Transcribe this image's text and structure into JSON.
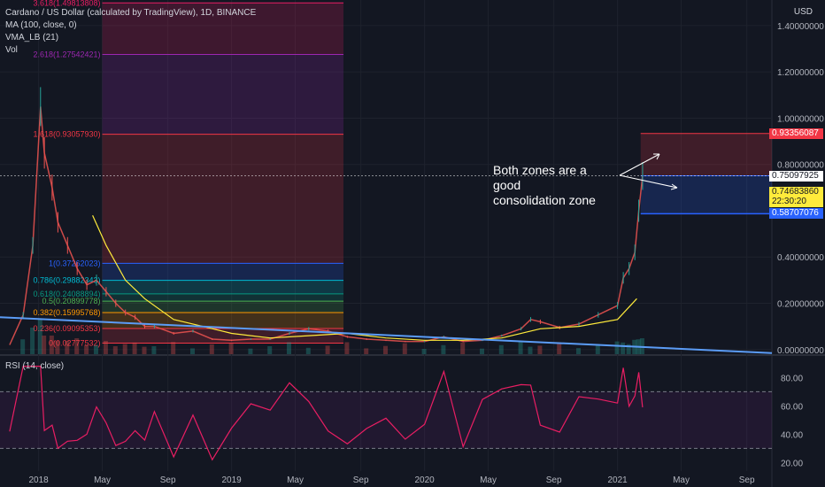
{
  "legend": {
    "title": "Cardano / US Dollar (calculated by TradingView), 1D, BINANCE",
    "ma": "MA (100, close, 0)",
    "vma": "VMA_LB (21)",
    "vol": "Vol"
  },
  "annotation": {
    "line1": "Both zones are a good",
    "line2": "consolidation zone"
  },
  "currency": "USD",
  "price_tags": [
    {
      "label": "0.93356087",
      "color": "#f23645",
      "text_color": "#ffffff"
    },
    {
      "label": "0.75097925",
      "color": "#ffffff",
      "text_color": "#131722"
    },
    {
      "label": "0.74683860",
      "color": "#ffeb3b",
      "text_color": "#131722"
    },
    {
      "label": "22:30:20",
      "color": "#ffeb3b",
      "text_color": "#131722"
    },
    {
      "label": "0.58707076",
      "color": "#2962ff",
      "text_color": "#ffffff"
    }
  ],
  "rsi_label": "RSI (14, close)",
  "chart_data": {
    "type": "candlestick",
    "title": "Cardano / US Dollar (calculated by TradingView), 1D, BINANCE",
    "y_axis": {
      "ticks": [
        "1.40000000",
        "1.20000000",
        "1.00000000",
        "0.80000000",
        "0.40000000",
        "0.20000000",
        "0.00000000"
      ],
      "tick_values": [
        1.4,
        1.2,
        1.0,
        0.8,
        0.4,
        0.2,
        0.0
      ],
      "range": [
        -0.02,
        1.48
      ]
    },
    "x_axis": {
      "ticks": [
        "2018",
        "May",
        "Sep",
        "2019",
        "May",
        "Sep",
        "2020",
        "May",
        "Sep",
        "2021",
        "May",
        "Sep"
      ],
      "tick_values": [
        2018.0,
        2018.33,
        2018.67,
        2019.0,
        2019.33,
        2019.67,
        2020.0,
        2020.33,
        2020.67,
        2021.0,
        2021.33,
        2021.67
      ],
      "range": [
        2017.8,
        2021.8
      ]
    },
    "price_series": [
      [
        2017.85,
        0.02
      ],
      [
        2017.92,
        0.15
      ],
      [
        2017.97,
        0.45
      ],
      [
        2018.01,
        1.05
      ],
      [
        2018.03,
        0.85
      ],
      [
        2018.07,
        0.7
      ],
      [
        2018.1,
        0.55
      ],
      [
        2018.15,
        0.45
      ],
      [
        2018.2,
        0.35
      ],
      [
        2018.25,
        0.28
      ],
      [
        2018.3,
        0.3
      ],
      [
        2018.35,
        0.25
      ],
      [
        2018.4,
        0.2
      ],
      [
        2018.45,
        0.16
      ],
      [
        2018.5,
        0.14
      ],
      [
        2018.55,
        0.1
      ],
      [
        2018.6,
        0.1
      ],
      [
        2018.7,
        0.07
      ],
      [
        2018.8,
        0.08
      ],
      [
        2018.9,
        0.045
      ],
      [
        2019.0,
        0.04
      ],
      [
        2019.1,
        0.045
      ],
      [
        2019.2,
        0.045
      ],
      [
        2019.3,
        0.07
      ],
      [
        2019.4,
        0.09
      ],
      [
        2019.5,
        0.08
      ],
      [
        2019.6,
        0.055
      ],
      [
        2019.7,
        0.045
      ],
      [
        2019.8,
        0.04
      ],
      [
        2019.9,
        0.035
      ],
      [
        2020.0,
        0.035
      ],
      [
        2020.1,
        0.055
      ],
      [
        2020.2,
        0.035
      ],
      [
        2020.3,
        0.04
      ],
      [
        2020.4,
        0.06
      ],
      [
        2020.5,
        0.09
      ],
      [
        2020.55,
        0.13
      ],
      [
        2020.6,
        0.12
      ],
      [
        2020.7,
        0.095
      ],
      [
        2020.8,
        0.11
      ],
      [
        2020.9,
        0.15
      ],
      [
        2021.0,
        0.19
      ],
      [
        2021.03,
        0.31
      ],
      [
        2021.06,
        0.35
      ],
      [
        2021.09,
        0.42
      ],
      [
        2021.11,
        0.6
      ],
      [
        2021.13,
        0.75
      ]
    ],
    "ma_series": [
      [
        2018.28,
        0.58
      ],
      [
        2018.35,
        0.45
      ],
      [
        2018.45,
        0.3
      ],
      [
        2018.55,
        0.22
      ],
      [
        2018.7,
        0.13
      ],
      [
        2018.85,
        0.1
      ],
      [
        2019.0,
        0.07
      ],
      [
        2019.2,
        0.05
      ],
      [
        2019.4,
        0.06
      ],
      [
        2019.6,
        0.07
      ],
      [
        2019.8,
        0.05
      ],
      [
        2020.0,
        0.04
      ],
      [
        2020.2,
        0.04
      ],
      [
        2020.4,
        0.05
      ],
      [
        2020.6,
        0.09
      ],
      [
        2020.8,
        0.1
      ],
      [
        2021.0,
        0.13
      ],
      [
        2021.1,
        0.22
      ]
    ],
    "fib": {
      "x_range": [
        2018.33,
        2019.58
      ],
      "levels": [
        {
          "label": "0(0.02777532)",
          "value": 0.02777532,
          "fill": "#f2364533"
        },
        {
          "label": "0.236(0.09095353)",
          "value": 0.09095353,
          "fill": "#f2364533"
        },
        {
          "label": "0.382(0.15995768)",
          "value": 0.15995768,
          "fill": "#ff980033"
        },
        {
          "label": "0.5(0.20899778)",
          "value": 0.20899778,
          "fill": "#4caf5033"
        },
        {
          "label": "0.618(0.24088894)",
          "value": 0.24088894,
          "fill": "#08998133"
        },
        {
          "label": "0.786(0.29882343)",
          "value": 0.29882343,
          "fill": "#00bcd433"
        },
        {
          "label": "1(0.37262023)",
          "value": 0.37262023,
          "fill": "#2962ff33"
        },
        {
          "label": "1.618(0.93057930)",
          "value": 0.9305793,
          "fill": "#f2364533"
        },
        {
          "label": "2.618(1.27542421)",
          "value": 1.27542421,
          "fill": "#9c27b033"
        },
        {
          "label": "3.618(1.49813808)",
          "value": 1.49813808,
          "fill": "#e91e6333"
        }
      ]
    },
    "zones": [
      {
        "from": 0.75097925,
        "to": 0.93356087,
        "color": "#f2364533"
      },
      {
        "from": 0.58707076,
        "to": 0.75097925,
        "color": "#2962ff33"
      }
    ],
    "trendline": [
      [
        2017.8,
        0.14
      ],
      [
        2021.8,
        -0.015
      ]
    ],
    "rsi": {
      "ticks": [
        "80.00",
        "60.00",
        "40.00",
        "20.00"
      ],
      "tick_values": [
        80,
        60,
        40,
        20
      ],
      "band": [
        30,
        70
      ],
      "range": [
        14,
        94
      ]
    }
  }
}
